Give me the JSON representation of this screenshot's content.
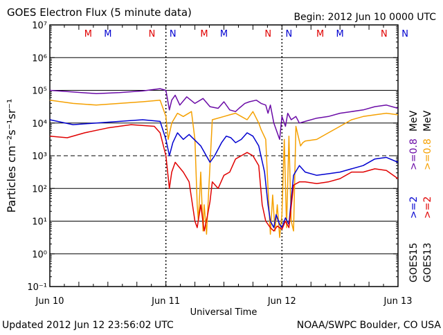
{
  "header": {
    "title": "GOES Electron Flux (5 minute data)",
    "begin": "Begin: 2012 Jun 10 0000 UTC"
  },
  "footer": {
    "updated": "Updated 2012 Jun 12 23:56:02 UTC",
    "credit": "NOAA/SWPC Boulder, CO USA"
  },
  "right_labels": {
    "goes15_label": "GOES15",
    "goes13_label": "GOES13",
    "goes15_e2": ">=2",
    "goes15_e08": ">=0.8",
    "unit": "MeV",
    "goes13_e2": ">=2",
    "goes13_e08": ">=0.8"
  },
  "markers": [
    {
      "letter": "M",
      "day": 0.33,
      "color": "#e00000"
    },
    {
      "letter": "M",
      "day": 0.5,
      "color": "#0000d0"
    },
    {
      "letter": "N",
      "day": 0.88,
      "color": "#e00000"
    },
    {
      "letter": "N",
      "day": 1.06,
      "color": "#0000d0"
    },
    {
      "letter": "M",
      "day": 1.33,
      "color": "#e00000"
    },
    {
      "letter": "M",
      "day": 1.5,
      "color": "#0000d0"
    },
    {
      "letter": "N",
      "day": 1.88,
      "color": "#e00000"
    },
    {
      "letter": "N",
      "day": 2.06,
      "color": "#0000d0"
    },
    {
      "letter": "M",
      "day": 2.33,
      "color": "#e00000"
    },
    {
      "letter": "M",
      "day": 2.5,
      "color": "#0000d0"
    },
    {
      "letter": "N",
      "day": 2.88,
      "color": "#e00000"
    },
    {
      "letter": "N",
      "day": 3.06,
      "color": "#0000d0"
    }
  ],
  "chart_data": {
    "type": "line",
    "xlabel": "Universal Time",
    "ylabel": "Particles cm⁻²s⁻¹sr⁻¹",
    "x_ticks": [
      "Jun 10",
      "Jun 11",
      "Jun 12",
      "Jun 13"
    ],
    "y_ticks": [
      "10⁻¹",
      "10⁰",
      "10¹",
      "10²",
      "10³",
      "10⁴",
      "10⁵",
      "10⁶",
      "10⁷"
    ],
    "x_unit": "days since Jun 10 0000 UTC",
    "xlim": [
      0,
      3
    ],
    "ylim_log10": [
      -1,
      7
    ],
    "y_scale": "log",
    "dashed_threshold_log10": 3,
    "series": [
      {
        "name": "GOES15 >=0.8 MeV",
        "color": "#6a0aa6",
        "x": [
          0,
          0.2,
          0.4,
          0.6,
          0.8,
          0.95,
          1.0,
          1.03,
          1.05,
          1.08,
          1.12,
          1.18,
          1.25,
          1.32,
          1.38,
          1.45,
          1.5,
          1.55,
          1.6,
          1.63,
          1.68,
          1.72,
          1.78,
          1.82,
          1.86,
          1.88,
          1.9,
          1.93,
          1.96,
          1.98,
          2.0,
          2.03,
          2.05,
          2.08,
          2.12,
          2.15,
          2.2,
          2.3,
          2.4,
          2.5,
          2.6,
          2.7,
          2.8,
          2.9,
          3.0
        ],
        "y": [
          5.0,
          4.95,
          4.9,
          4.93,
          4.98,
          5.05,
          5.0,
          4.4,
          4.7,
          4.85,
          4.55,
          4.8,
          4.6,
          4.75,
          4.5,
          4.45,
          4.65,
          4.4,
          4.35,
          4.45,
          4.6,
          4.65,
          4.7,
          4.6,
          4.55,
          4.3,
          4.55,
          4.0,
          3.7,
          3.5,
          4.2,
          3.9,
          4.3,
          4.1,
          4.2,
          4.0,
          4.05,
          4.15,
          4.2,
          4.3,
          4.35,
          4.4,
          4.5,
          4.55,
          4.45
        ]
      },
      {
        "name": "GOES13 >=0.8 MeV",
        "color": "#f5a000",
        "x": [
          0,
          0.2,
          0.4,
          0.6,
          0.8,
          0.95,
          1.0,
          1.02,
          1.05,
          1.1,
          1.15,
          1.22,
          1.25,
          1.27,
          1.28,
          1.3,
          1.32,
          1.33,
          1.35,
          1.37,
          1.4,
          1.5,
          1.55,
          1.6,
          1.65,
          1.7,
          1.75,
          1.8,
          1.82,
          1.86,
          1.88,
          1.9,
          1.92,
          1.94,
          1.96,
          1.98,
          2.0,
          2.02,
          2.04,
          2.06,
          2.08,
          2.1,
          2.12,
          2.14,
          2.16,
          2.18,
          2.2,
          2.3,
          2.4,
          2.5,
          2.6,
          2.7,
          2.8,
          2.9,
          3.0
        ],
        "y": [
          4.7,
          4.6,
          4.55,
          4.6,
          4.65,
          4.7,
          4.2,
          3.5,
          4.0,
          4.3,
          4.2,
          4.35,
          3.5,
          1.5,
          1.0,
          2.5,
          0.7,
          1.5,
          0.6,
          2.0,
          4.1,
          4.2,
          4.25,
          4.3,
          4.2,
          4.1,
          4.35,
          4.0,
          3.8,
          3.5,
          2.0,
          0.6,
          1.8,
          0.7,
          1.5,
          0.5,
          1.2,
          3.5,
          0.8,
          3.6,
          1.0,
          0.7,
          3.9,
          3.6,
          3.3,
          3.4,
          3.45,
          3.5,
          3.7,
          3.9,
          4.1,
          4.2,
          4.25,
          4.3,
          4.25
        ]
      },
      {
        "name": "GOES15 >=2 MeV",
        "color": "#0000d0",
        "x": [
          0,
          0.2,
          0.4,
          0.6,
          0.8,
          0.95,
          1.0,
          1.03,
          1.06,
          1.1,
          1.15,
          1.2,
          1.3,
          1.38,
          1.42,
          1.48,
          1.52,
          1.56,
          1.6,
          1.65,
          1.7,
          1.75,
          1.8,
          1.85,
          1.88,
          1.9,
          1.93,
          1.95,
          1.98,
          2.0,
          2.03,
          2.06,
          2.1,
          2.15,
          2.2,
          2.3,
          2.4,
          2.5,
          2.6,
          2.7,
          2.8,
          2.9,
          3.0
        ],
        "y": [
          4.1,
          3.95,
          4.0,
          4.05,
          4.1,
          4.05,
          3.5,
          3.0,
          3.4,
          3.7,
          3.5,
          3.65,
          3.3,
          2.8,
          3.0,
          3.4,
          3.6,
          3.55,
          3.4,
          3.5,
          3.7,
          3.6,
          3.3,
          2.5,
          1.5,
          1.0,
          0.8,
          1.2,
          0.9,
          0.8,
          1.1,
          0.9,
          2.4,
          2.7,
          2.5,
          2.4,
          2.45,
          2.5,
          2.6,
          2.7,
          2.9,
          2.95,
          2.8
        ]
      },
      {
        "name": "GOES13 >=2 MeV",
        "color": "#e00000",
        "x": [
          0,
          0.15,
          0.3,
          0.5,
          0.7,
          0.9,
          0.95,
          1.0,
          1.03,
          1.05,
          1.08,
          1.15,
          1.2,
          1.25,
          1.27,
          1.3,
          1.33,
          1.36,
          1.38,
          1.4,
          1.45,
          1.5,
          1.55,
          1.6,
          1.65,
          1.7,
          1.75,
          1.8,
          1.83,
          1.86,
          1.9,
          1.93,
          1.96,
          2.0,
          2.03,
          2.06,
          2.1,
          2.15,
          2.2,
          2.3,
          2.4,
          2.5,
          2.6,
          2.7,
          2.8,
          2.9,
          3.0
        ],
        "y": [
          3.6,
          3.55,
          3.7,
          3.85,
          3.95,
          3.9,
          3.7,
          3.0,
          2.0,
          2.5,
          2.8,
          2.5,
          2.2,
          1.0,
          0.8,
          1.5,
          0.7,
          1.2,
          1.6,
          2.2,
          2.0,
          2.4,
          2.5,
          2.9,
          3.0,
          3.1,
          3.0,
          2.7,
          1.5,
          1.0,
          0.8,
          0.7,
          0.85,
          0.75,
          1.0,
          0.8,
          2.1,
          2.2,
          2.2,
          2.15,
          2.2,
          2.3,
          2.5,
          2.5,
          2.6,
          2.55,
          2.3
        ]
      }
    ]
  }
}
